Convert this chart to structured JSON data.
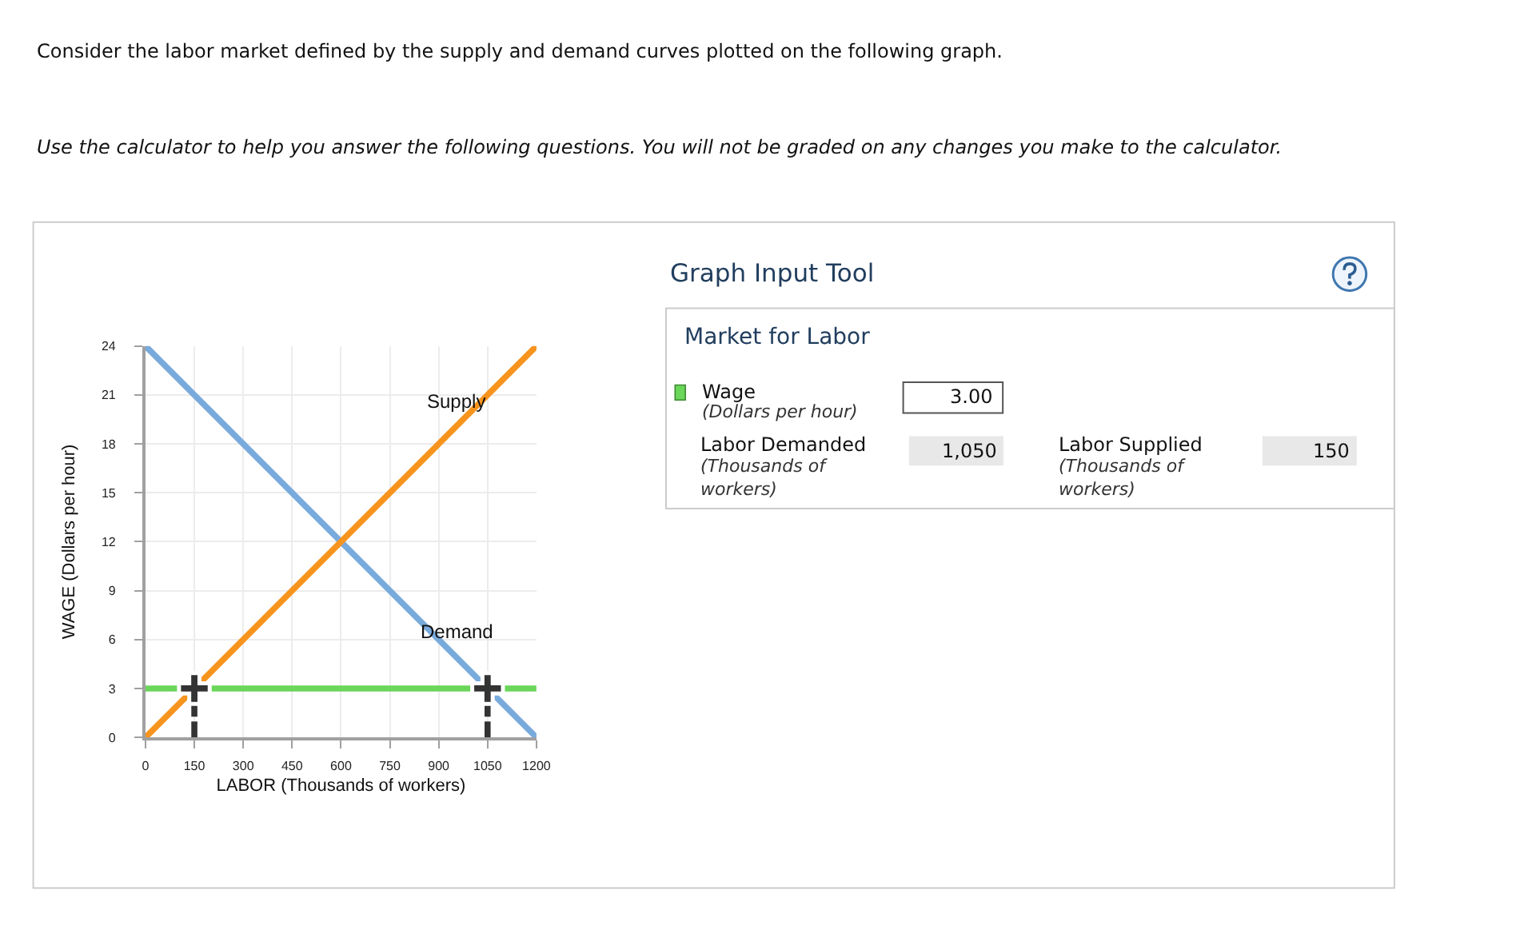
{
  "chart_data": [
    {
      "type": "line",
      "title": "Consider the labor market defined by the supply and demand curves plotted on the following graph.",
      "subtitle": "Use the calculator to help you answer the following questions. You will not be graded on any changes you make to the calculator.",
      "xlabel": "LABOR (Thousands of workers)",
      "ylabel": "WAGE (Dollars per hour)",
      "xlim": [
        0,
        1200
      ],
      "xticks": [
        0,
        150,
        300,
        450,
        600,
        750,
        900,
        1050,
        1200
      ],
      "ylim": [
        0,
        24
      ],
      "yticks": [
        0,
        3,
        6,
        9,
        12,
        15,
        18,
        21,
        24
      ],
      "grid": true,
      "series": [
        {
          "type": "line",
          "name": "Demand",
          "color": "#79aadc",
          "x": [
            0,
            1200
          ],
          "values": [
            24,
            0
          ]
        },
        {
          "type": "line",
          "name": "Supply",
          "color": "#f7941e",
          "x": [
            0,
            1200
          ],
          "values": [
            0,
            24
          ]
        },
        {
          "type": "line",
          "color": "#333333",
          "line_style": "dashed",
          "x": [
            150,
            150
          ],
          "values": [
            0,
            3
          ]
        },
        {
          "type": "line",
          "color": "#333333",
          "line_style": "dashed",
          "x": [
            1050,
            1050
          ],
          "values": [
            0,
            3
          ]
        },
        {
          "type": "scatter",
          "color": "#333333",
          "marker": "cross",
          "x": [
            150,
            1050
          ],
          "values": [
            3,
            3
          ]
        }
      ],
      "ref_lines": [
        {
          "axis": "y",
          "value": 3,
          "color": "#6ad65a"
        }
      ]
    },
    {
      "type": "other",
      "title": "Graph Input Tool",
      "subtitle": "Market for Labor",
      "annotations": [
        "Wage",
        "(Dollars per hour)",
        "3.00",
        "Labor Demanded",
        "(Thousands of workers)",
        "1,050",
        "Labor Supplied",
        "(Thousands of workers)",
        "150"
      ]
    }
  ]
}
